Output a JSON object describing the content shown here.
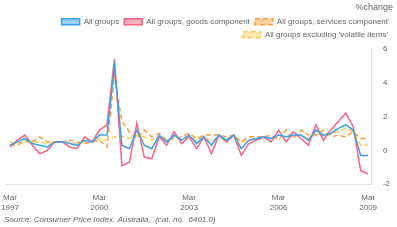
{
  "chart_data": {
    "type": "line",
    "ylabel": "%change",
    "annotations": [
      "Source: Consumer Price Index, Australia,  (cat. no.  6401.0)"
    ],
    "categories": [
      "Mar\n1997",
      null,
      null,
      null,
      null,
      null,
      null,
      null,
      null,
      null,
      null,
      null,
      "Mar\n2000",
      null,
      null,
      null,
      null,
      null,
      null,
      null,
      null,
      null,
      null,
      null,
      "Mar\n2003",
      null,
      null,
      null,
      null,
      null,
      null,
      null,
      null,
      null,
      null,
      null,
      "Mar\n2006",
      null,
      null,
      null,
      null,
      null,
      null,
      null,
      null,
      null,
      null,
      null,
      "Mar\n2009"
    ],
    "series": [
      {
        "name": "All groups",
        "line_style": "solid",
        "values": [
          0.3,
          0.5,
          0.7,
          0.4,
          0.3,
          0.2,
          0.5,
          0.5,
          0.4,
          0.3,
          0.6,
          0.5,
          0.9,
          0.9,
          5.0,
          0.3,
          0.1,
          1.2,
          0.3,
          0.1,
          0.9,
          0.5,
          0.9,
          0.6,
          0.9,
          0.4,
          0.8,
          0.3,
          0.9,
          0.6,
          0.9,
          0.1,
          0.6,
          0.7,
          0.8,
          0.7,
          0.9,
          0.8,
          0.9,
          0.9,
          0.6,
          1.2,
          0.9,
          1.0,
          1.3,
          1.5,
          1.2,
          -0.3,
          -0.3
        ]
      },
      {
        "name": "All groups, goods component",
        "line_style": "solid",
        "values": [
          0.2,
          0.6,
          0.9,
          0.3,
          -0.2,
          0.0,
          0.5,
          0.5,
          0.2,
          0.1,
          0.8,
          0.5,
          1.2,
          1.5,
          5.4,
          -0.9,
          -0.7,
          1.6,
          -0.4,
          -0.5,
          0.8,
          0.3,
          1.1,
          0.4,
          0.8,
          0.1,
          0.8,
          -0.2,
          0.9,
          0.5,
          0.9,
          -0.3,
          0.4,
          0.6,
          0.8,
          0.5,
          1.2,
          0.5,
          1.1,
          0.7,
          0.3,
          1.5,
          0.6,
          1.2,
          1.7,
          2.2,
          1.4,
          -1.2,
          -1.4
        ]
      },
      {
        "name": "All groups, services component",
        "line_style": "dashed",
        "values": [
          0.3,
          0.3,
          0.6,
          0.5,
          0.8,
          0.5,
          0.5,
          0.5,
          0.6,
          0.5,
          0.4,
          0.5,
          0.6,
          0.2,
          4.4,
          1.7,
          1.1,
          0.7,
          1.2,
          0.8,
          1.0,
          0.6,
          0.7,
          0.8,
          1.0,
          0.7,
          0.9,
          0.9,
          0.9,
          0.8,
          0.9,
          0.5,
          0.8,
          0.8,
          0.8,
          0.9,
          0.6,
          1.2,
          0.7,
          1.2,
          0.9,
          0.9,
          1.2,
          0.8,
          0.9,
          0.8,
          1.1,
          0.7,
          0.7
        ]
      },
      {
        "name": "All groups excluding 'volatile items'",
        "line_style": "dashed",
        "values": [
          0.5,
          0.4,
          0.5,
          0.5,
          0.5,
          0.4,
          0.5,
          0.5,
          0.5,
          0.4,
          0.5,
          0.5,
          0.7,
          0.6,
          0.8,
          0.8,
          0.7,
          0.9,
          0.8,
          0.6,
          0.8,
          0.5,
          0.8,
          0.6,
          0.8,
          0.6,
          0.8,
          0.5,
          0.8,
          0.7,
          0.8,
          0.5,
          0.6,
          0.7,
          0.7,
          0.7,
          0.8,
          0.8,
          0.8,
          0.9,
          0.7,
          1.0,
          0.9,
          1.0,
          1.1,
          1.3,
          1.1,
          0.3,
          0.3
        ]
      }
    ],
    "ylim": [
      -2,
      6
    ],
    "yticks": [
      -2,
      0,
      2,
      4,
      6
    ],
    "grid": false,
    "legend": "upper right"
  }
}
